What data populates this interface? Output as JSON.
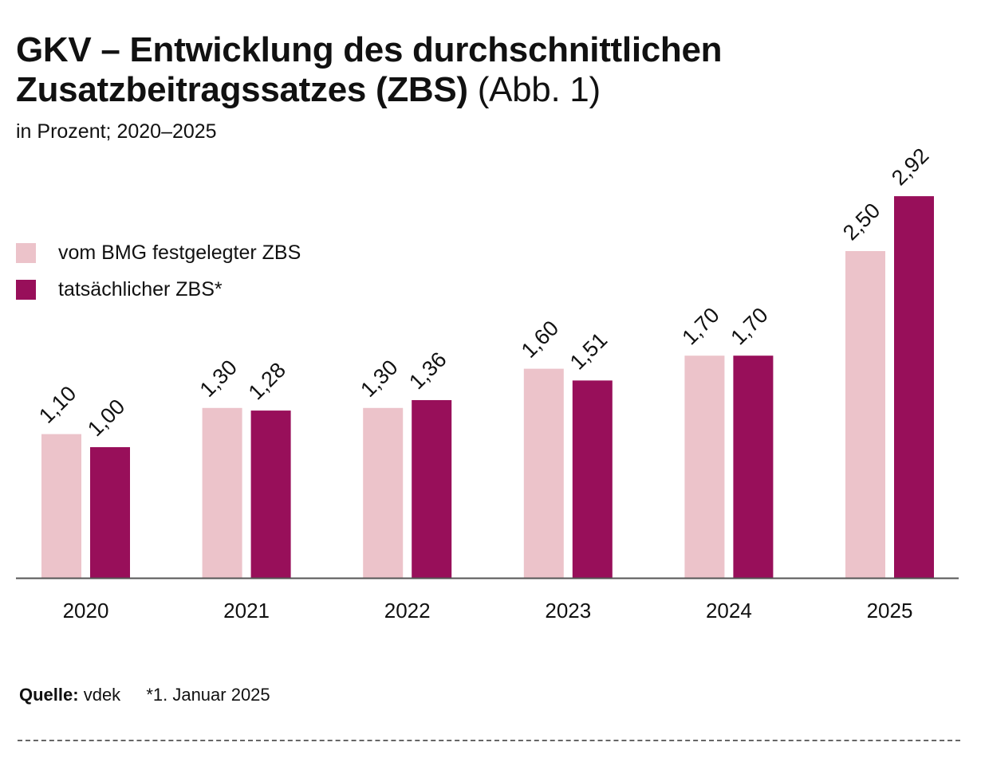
{
  "header": {
    "title_main": "GKV – Entwicklung des durchschnittlichen Zusatzbeitragssatzes (ZBS)",
    "title_suffix": "(Abb. 1)",
    "subtitle": "in Prozent; 2020–2025"
  },
  "legend": {
    "items": [
      {
        "label": "vom BMG festgelegter ZBS",
        "color": "#ecc3ca"
      },
      {
        "label": "tatsächlicher ZBS*",
        "color": "#980f5a"
      }
    ]
  },
  "chart_data": {
    "type": "bar",
    "categories": [
      "2020",
      "2021",
      "2022",
      "2023",
      "2024",
      "2025"
    ],
    "series": [
      {
        "name": "vom BMG festgelegter ZBS",
        "values": [
          1.1,
          1.3,
          1.3,
          1.6,
          1.7,
          2.5
        ],
        "labels": [
          "1,10",
          "1,30",
          "1,30",
          "1,60",
          "1,70",
          "2,50"
        ],
        "color": "#ecc3ca"
      },
      {
        "name": "tatsächlicher ZBS*",
        "values": [
          1.0,
          1.28,
          1.36,
          1.51,
          1.7,
          2.92
        ],
        "labels": [
          "1,00",
          "1,28",
          "1,36",
          "1,51",
          "1,70",
          "2,92"
        ],
        "color": "#980f5a"
      }
    ],
    "ylim": [
      0,
      3.0
    ],
    "grid": false,
    "legend_position": "top-left"
  },
  "footer": {
    "source_label": "Quelle:",
    "source_value": "vdek",
    "note": "*1. Januar 2025"
  }
}
